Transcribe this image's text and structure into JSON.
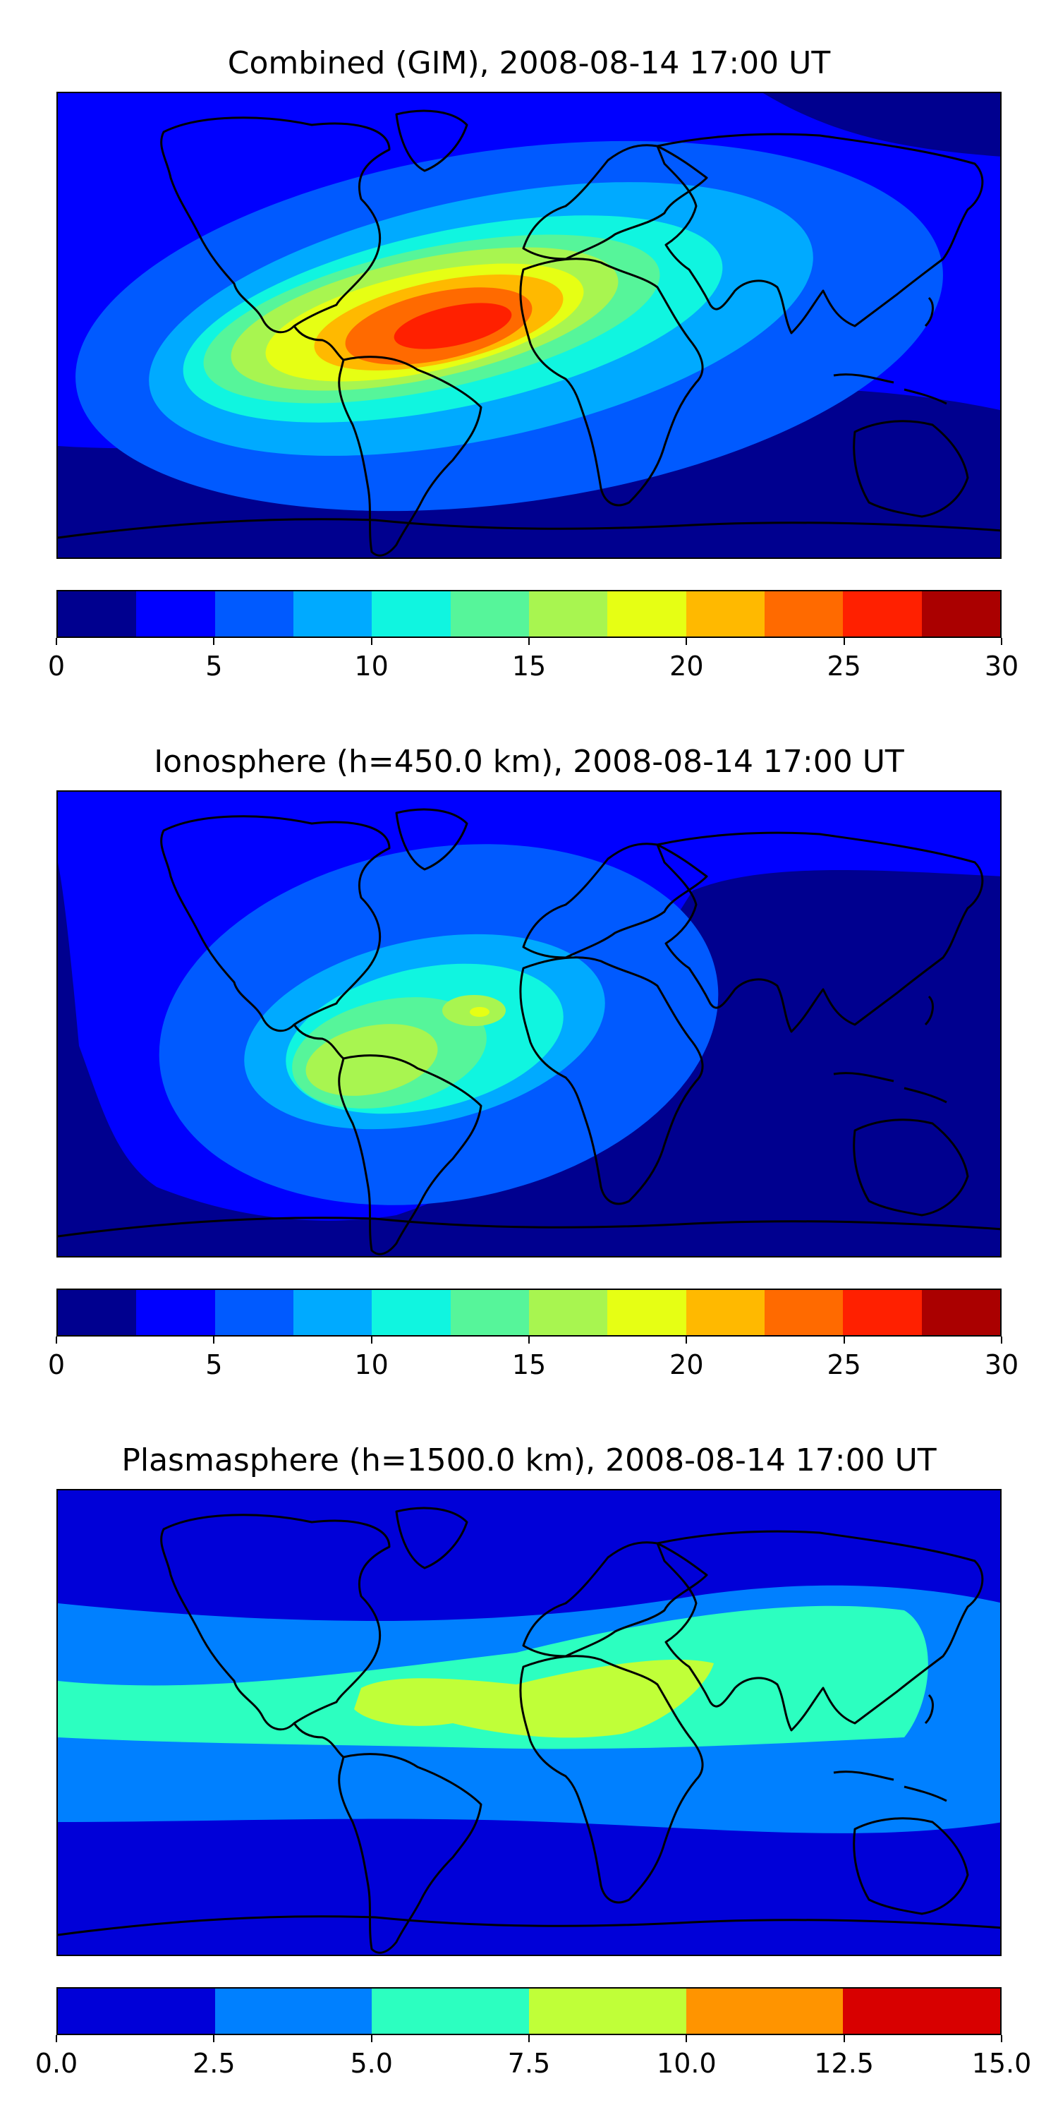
{
  "chart_data": [
    {
      "type": "heatmap",
      "subtype": "filled-contour world map",
      "title": "Combined (GIM), 2008-08-14 17:00 UT",
      "colorbar": {
        "levels": [
          0,
          2.5,
          5,
          7.5,
          10,
          12.5,
          15,
          17.5,
          20,
          22.5,
          25,
          27.5,
          30
        ],
        "colors": [
          "#00008f",
          "#0000ff",
          "#005aff",
          "#00aaff",
          "#10f5e0",
          "#56f59a",
          "#a8f550",
          "#e6ff14",
          "#ffb900",
          "#ff6a00",
          "#ff2000",
          "#aa0000"
        ],
        "ticks": [
          "0",
          "5",
          "10",
          "15",
          "20",
          "25",
          "30"
        ],
        "tick_values": [
          0,
          5,
          10,
          15,
          20,
          25,
          30
        ],
        "range": [
          0,
          30
        ]
      },
      "features": [
        {
          "region": "equatorial Atlantic / South America maximum",
          "level_range": [
            25,
            27.5
          ]
        },
        {
          "region": "polar and high-latitude regions",
          "level_range": [
            2.5,
            5
          ]
        }
      ]
    },
    {
      "type": "heatmap",
      "subtype": "filled-contour world map",
      "title": "Ionosphere  (h=450.0 km), 2008-08-14 17:00 UT",
      "colorbar": {
        "levels": [
          0,
          2.5,
          5,
          7.5,
          10,
          12.5,
          15,
          17.5,
          20,
          22.5,
          25,
          27.5,
          30
        ],
        "colors": [
          "#00008f",
          "#0000ff",
          "#005aff",
          "#00aaff",
          "#10f5e0",
          "#56f59a",
          "#a8f550",
          "#e6ff14",
          "#ffb900",
          "#ff6a00",
          "#ff2000",
          "#aa0000"
        ],
        "ticks": [
          "0",
          "5",
          "10",
          "15",
          "20",
          "25",
          "30"
        ],
        "tick_values": [
          0,
          5,
          10,
          15,
          20,
          25,
          30
        ],
        "range": [
          0,
          30
        ]
      },
      "features": [
        {
          "region": "South America maximum",
          "level_range": [
            15,
            17.5
          ]
        },
        {
          "region": "Eastern hemisphere (night side)",
          "level_range": [
            0,
            2.5
          ]
        }
      ]
    },
    {
      "type": "heatmap",
      "subtype": "filled-contour world map",
      "title": "Plasmasphere (h=1500.0 km), 2008-08-14 17:00 UT",
      "colorbar": {
        "levels": [
          0,
          2.5,
          5,
          7.5,
          10,
          12.5,
          15
        ],
        "colors": [
          "#0000d8",
          "#0080ff",
          "#2cffc0",
          "#c0ff38",
          "#ff9400",
          "#d80000"
        ],
        "ticks": [
          "0.0",
          "2.5",
          "5.0",
          "7.5",
          "10.0",
          "12.5",
          "15.0"
        ],
        "tick_values": [
          0,
          2.5,
          5,
          7.5,
          10,
          12.5,
          15
        ],
        "range": [
          0,
          15
        ]
      },
      "features": [
        {
          "region": "low-latitude band, Africa / South America maximum",
          "level_range": [
            7.5,
            10
          ]
        },
        {
          "region": "polar regions",
          "level_range": [
            0,
            2.5
          ]
        }
      ]
    }
  ]
}
